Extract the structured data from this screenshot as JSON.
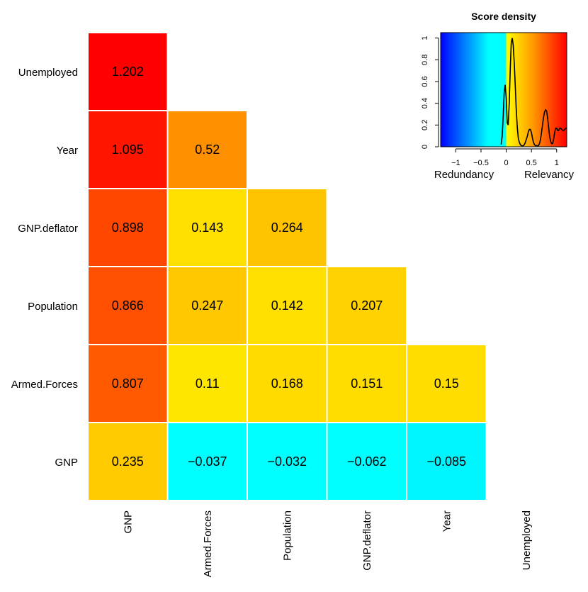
{
  "chart_data": [
    {
      "type": "heatmap",
      "rows": [
        "Unemployed",
        "Year",
        "GNP.deflator",
        "Population",
        "Armed.Forces",
        "GNP"
      ],
      "columns": [
        "GNP",
        "Armed.Forces",
        "Population",
        "GNP.deflator",
        "Year",
        "Unemployed"
      ],
      "cells": [
        {
          "row": "Unemployed",
          "col": "GNP",
          "value": 1.202,
          "label": "1.202",
          "color": "#ff0000"
        },
        {
          "row": "Year",
          "col": "GNP",
          "value": 1.095,
          "label": "1.095",
          "color": "#ff1500"
        },
        {
          "row": "Year",
          "col": "Armed.Forces",
          "value": 0.52,
          "label": "0.52",
          "color": "#ff9100"
        },
        {
          "row": "GNP.deflator",
          "col": "GNP",
          "value": 0.898,
          "label": "0.898",
          "color": "#ff4700"
        },
        {
          "row": "GNP.deflator",
          "col": "Armed.Forces",
          "value": 0.143,
          "label": "0.143",
          "color": "#ffe000"
        },
        {
          "row": "GNP.deflator",
          "col": "Population",
          "value": 0.264,
          "label": "0.264",
          "color": "#ffc400"
        },
        {
          "row": "Population",
          "col": "GNP",
          "value": 0.866,
          "label": "0.866",
          "color": "#ff4f00"
        },
        {
          "row": "Population",
          "col": "Armed.Forces",
          "value": 0.247,
          "label": "0.247",
          "color": "#ffc800"
        },
        {
          "row": "Population",
          "col": "Population",
          "value": 0.142,
          "label": "0.142",
          "color": "#ffe000"
        },
        {
          "row": "Population",
          "col": "GNP.deflator",
          "value": 0.207,
          "label": "0.207",
          "color": "#ffd200"
        },
        {
          "row": "Armed.Forces",
          "col": "GNP",
          "value": 0.807,
          "label": "0.807",
          "color": "#ff5a00"
        },
        {
          "row": "Armed.Forces",
          "col": "Armed.Forces",
          "value": 0.11,
          "label": "0.11",
          "color": "#ffe600"
        },
        {
          "row": "Armed.Forces",
          "col": "Population",
          "value": 0.168,
          "label": "0.168",
          "color": "#ffdb00"
        },
        {
          "row": "Armed.Forces",
          "col": "GNP.deflator",
          "value": 0.151,
          "label": "0.151",
          "color": "#ffdd00"
        },
        {
          "row": "Armed.Forces",
          "col": "Year",
          "value": 0.15,
          "label": "0.15",
          "color": "#ffdd00"
        },
        {
          "row": "GNP",
          "col": "GNP",
          "value": 0.235,
          "label": "0.235",
          "color": "#ffca00"
        },
        {
          "row": "GNP",
          "col": "Armed.Forces",
          "value": -0.037,
          "label": "−0.037",
          "color": "#00ffff"
        },
        {
          "row": "GNP",
          "col": "Population",
          "value": -0.032,
          "label": "−0.032",
          "color": "#00ffff"
        },
        {
          "row": "GNP",
          "col": "GNP.deflator",
          "value": -0.062,
          "label": "−0.062",
          "color": "#00ffff"
        },
        {
          "row": "GNP",
          "col": "Year",
          "value": -0.085,
          "label": "−0.085",
          "color": "#00f6ff"
        }
      ]
    },
    {
      "type": "line",
      "title": "Score density",
      "xlabel_left": "Redundancy",
      "xlabel_right": "Relevancy",
      "xlim": [
        -1.3,
        1.2
      ],
      "ylim": [
        0,
        1.05
      ],
      "xticks": [
        -1,
        -0.5,
        0,
        0.5,
        1
      ],
      "xtick_labels": [
        "−1",
        "−0.5",
        "0",
        "0.5",
        "1"
      ],
      "yticks": [
        0,
        0.2,
        0.4,
        0.6,
        0.8,
        1
      ],
      "ytick_labels": [
        "0",
        "0.2",
        "0.4",
        "0.6",
        "0.8",
        "1"
      ],
      "background_gradient": [
        {
          "at": -1.3,
          "color": "#0000ff"
        },
        {
          "at": -0.35,
          "color": "#00ffff"
        },
        {
          "at": 0.0,
          "color": "#00ffff"
        },
        {
          "at": 0.001,
          "color": "#ffff00"
        },
        {
          "at": 0.5,
          "color": "#ffa000"
        },
        {
          "at": 1.2,
          "color": "#ff0000"
        }
      ],
      "series": [
        {
          "x": [
            -0.1,
            -0.08,
            -0.06,
            -0.04,
            -0.02,
            0.0,
            0.02,
            0.04,
            0.06,
            0.08,
            0.1,
            0.12,
            0.14,
            0.16,
            0.18,
            0.2,
            0.22,
            0.24,
            0.26,
            0.28,
            0.3,
            0.32,
            0.34,
            0.36,
            0.38,
            0.4,
            0.42,
            0.44,
            0.46,
            0.48,
            0.5,
            0.52,
            0.54,
            0.56,
            0.58,
            0.6,
            0.62,
            0.64,
            0.66,
            0.68,
            0.7,
            0.72,
            0.74,
            0.76,
            0.78,
            0.8,
            0.82,
            0.84,
            0.86,
            0.88,
            0.9,
            0.92,
            0.94,
            0.96,
            0.98,
            1.0,
            1.02,
            1.04,
            1.06,
            1.08,
            1.1,
            1.12,
            1.14,
            1.16,
            1.18,
            1.2
          ],
          "y": [
            0.02,
            0.1,
            0.28,
            0.5,
            0.57,
            0.45,
            0.22,
            0.2,
            0.4,
            0.72,
            0.96,
            1.0,
            0.93,
            0.76,
            0.55,
            0.33,
            0.18,
            0.08,
            0.04,
            0.02,
            0.01,
            0.01,
            0.01,
            0.02,
            0.04,
            0.07,
            0.1,
            0.14,
            0.16,
            0.16,
            0.13,
            0.08,
            0.04,
            0.02,
            0.01,
            0.01,
            0.01,
            0.01,
            0.03,
            0.07,
            0.13,
            0.2,
            0.27,
            0.32,
            0.34,
            0.33,
            0.27,
            0.18,
            0.1,
            0.05,
            0.03,
            0.03,
            0.07,
            0.13,
            0.17,
            0.17,
            0.15,
            0.15,
            0.17,
            0.17,
            0.16,
            0.15,
            0.15,
            0.16,
            0.17,
            0.17
          ]
        }
      ]
    }
  ]
}
